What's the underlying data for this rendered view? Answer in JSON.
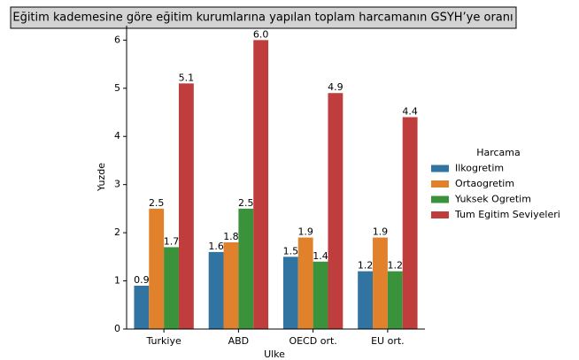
{
  "chart_data": {
    "type": "bar",
    "title": "Eğitim kademesine göre eğitim kurumlarına yapılan toplam harcamanın GSYH’ye oranı",
    "x_label": "Ulke",
    "y_label": "Yuzde",
    "categories": [
      "Turkiye",
      "ABD",
      "OECD ort.",
      "EU ort."
    ],
    "legend_title": "Harcama",
    "legend": "right",
    "series": [
      {
        "name": "Ilkogretim",
        "color": "#3274a1",
        "values": [
          0.9,
          1.6,
          1.5,
          1.2
        ],
        "value_labels": [
          "0.9",
          "1.6",
          "1.5",
          "1.2"
        ]
      },
      {
        "name": "Ortaogretim",
        "color": "#e1812c",
        "values": [
          2.5,
          1.8,
          1.9,
          1.9
        ],
        "value_labels": [
          "2.5",
          "1.8",
          "1.9",
          "1.9"
        ]
      },
      {
        "name": "Yuksek Ogretim",
        "color": "#3a923a",
        "values": [
          1.7,
          2.5,
          1.4,
          1.2
        ],
        "value_labels": [
          "1.7",
          "2.5",
          "1.4",
          "1.2"
        ]
      },
      {
        "name": "Tum Egitim Seviyeleri",
        "color": "#c03d3e",
        "values": [
          5.1,
          6.0,
          4.9,
          4.4
        ],
        "value_labels": [
          "5.1",
          "6.0",
          "4.9",
          "4.4"
        ]
      }
    ],
    "ylim": [
      0,
      6.3
    ],
    "yticks": [
      0,
      1,
      2,
      3,
      4,
      5,
      6
    ],
    "grid": false
  }
}
